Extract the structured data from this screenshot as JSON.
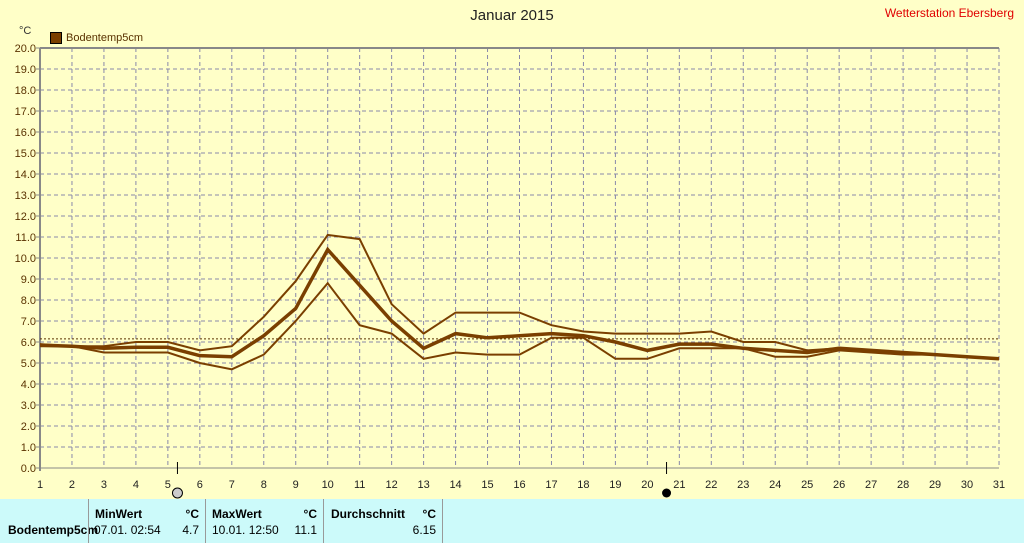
{
  "title": "Januar 2015",
  "station": "Wetterstation Ebersberg",
  "unit": "°C",
  "legend": "Bodentemp5cm",
  "markers": {
    "full_moon_day": 5.3,
    "new_moon_day": 20.6
  },
  "chart_data": {
    "type": "line",
    "title": "Januar 2015",
    "ylabel": "°C",
    "ylim": [
      0,
      20
    ],
    "yticks": [
      "0.0",
      "1.0",
      "2.0",
      "3.0",
      "4.0",
      "5.0",
      "6.0",
      "7.0",
      "8.0",
      "9.0",
      "10.0",
      "11.0",
      "12.0",
      "13.0",
      "14.0",
      "15.0",
      "16.0",
      "17.0",
      "18.0",
      "19.0",
      "20.0"
    ],
    "x": [
      1,
      2,
      3,
      4,
      5,
      6,
      7,
      8,
      9,
      10,
      11,
      12,
      13,
      14,
      15,
      16,
      17,
      18,
      19,
      20,
      21,
      22,
      23,
      24,
      25,
      26,
      27,
      28,
      29,
      30,
      31
    ],
    "average_line": 6.15,
    "series": [
      {
        "name": "Bodentemp5cm max",
        "values": [
          5.9,
          5.8,
          5.8,
          6.0,
          6.0,
          5.6,
          5.8,
          7.2,
          8.9,
          11.1,
          10.9,
          7.8,
          6.4,
          7.4,
          7.4,
          7.4,
          6.8,
          6.5,
          6.4,
          6.4,
          6.4,
          6.5,
          6.0,
          6.0,
          5.6,
          5.7,
          5.6,
          5.5,
          5.4,
          5.3,
          5.2
        ]
      },
      {
        "name": "Bodentemp5cm min",
        "values": [
          5.8,
          5.8,
          5.5,
          5.5,
          5.5,
          5.0,
          4.7,
          5.4,
          7.0,
          8.8,
          6.8,
          6.4,
          5.2,
          5.5,
          5.4,
          5.4,
          6.2,
          6.2,
          5.2,
          5.2,
          5.7,
          5.7,
          5.7,
          5.3,
          5.3,
          5.6,
          5.5,
          5.4,
          5.4,
          5.3,
          5.2
        ]
      },
      {
        "name": "Bodentemp5cm",
        "values": [
          5.85,
          5.8,
          5.7,
          5.75,
          5.75,
          5.35,
          5.3,
          6.3,
          7.6,
          10.4,
          8.7,
          7.0,
          5.7,
          6.4,
          6.2,
          6.3,
          6.4,
          6.3,
          6.0,
          5.6,
          5.9,
          5.9,
          5.7,
          5.6,
          5.5,
          5.7,
          5.6,
          5.5,
          5.4,
          5.3,
          5.2
        ]
      }
    ]
  },
  "table": {
    "row_label": "Bodentemp5cm",
    "min": {
      "header": "MinWert",
      "unit": "°C",
      "time": "07.01.  02:54",
      "value": "4.7"
    },
    "max": {
      "header": "MaxWert",
      "unit": "°C",
      "time": "10.01.  12:50",
      "value": "11.1"
    },
    "avg": {
      "header": "Durchschnitt",
      "unit": "°C",
      "value": "6.15"
    }
  }
}
